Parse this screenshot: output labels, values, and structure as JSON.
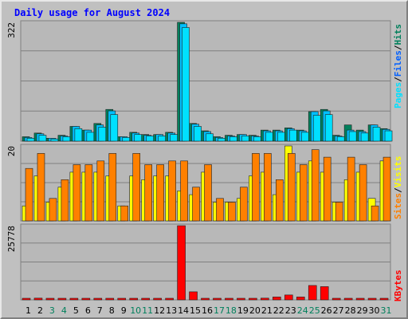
{
  "title": "Daily usage for August 2024",
  "colors": {
    "frame_bg": "#c0c0c0",
    "plot_bg": "#b8b8b8",
    "title": "#0000ff",
    "hits": "#00805c",
    "files": "#00c0ff",
    "pages": "#00e0ff",
    "visits": "#ffff00",
    "sites": "#ff8000",
    "kbytes": "#ff0000",
    "weekday_label": "#000000",
    "weekend_label": "#00805c"
  },
  "chart_data": [
    {
      "type": "bar",
      "panel": "hits-files-pages",
      "ymax_label": "322",
      "ylim": [
        0,
        322
      ],
      "legend": {
        "pages": "Pages",
        "files": "Files",
        "hits": "Hits",
        "sep": "/"
      },
      "series": [
        {
          "name": "Hits",
          "values": [
            12,
            22,
            8,
            16,
            40,
            30,
            48,
            86,
            12,
            24,
            18,
            18,
            24,
            322,
            48,
            28,
            12,
            16,
            18,
            16,
            30,
            30,
            36,
            30,
            80,
            86,
            16,
            44,
            30,
            44,
            34
          ]
        },
        {
          "name": "Files",
          "values": [
            10,
            20,
            8,
            14,
            40,
            30,
            44,
            82,
            12,
            22,
            16,
            18,
            22,
            318,
            46,
            26,
            10,
            14,
            18,
            14,
            28,
            28,
            34,
            28,
            80,
            82,
            14,
            30,
            26,
            44,
            32
          ]
        },
        {
          "name": "Pages",
          "values": [
            8,
            16,
            6,
            12,
            34,
            24,
            38,
            72,
            10,
            18,
            14,
            14,
            18,
            308,
            40,
            20,
            8,
            12,
            14,
            12,
            24,
            24,
            30,
            24,
            70,
            72,
            12,
            26,
            22,
            38,
            28
          ]
        }
      ]
    },
    {
      "type": "bar",
      "panel": "visits-sites",
      "ymax_label": "20",
      "ylim": [
        0,
        20
      ],
      "legend": {
        "sites": "Sites",
        "visits": "Visits",
        "sep": "/"
      },
      "series": [
        {
          "name": "Visits",
          "values": [
            4,
            12,
            5,
            9,
            13,
            13,
            13,
            12,
            4,
            12,
            11,
            12,
            12,
            8,
            7,
            13,
            5,
            5,
            6,
            12,
            13,
            7,
            20,
            13,
            16,
            13,
            5,
            11,
            13,
            6,
            16
          ]
        },
        {
          "name": "Sites",
          "values": [
            14,
            18,
            6,
            11,
            15,
            15,
            16,
            18,
            4,
            18,
            15,
            15,
            16,
            16,
            9,
            15,
            6,
            5,
            9,
            18,
            18,
            11,
            18,
            15,
            19,
            17,
            5,
            17,
            15,
            4,
            17
          ]
        }
      ]
    },
    {
      "type": "bar",
      "panel": "kbytes",
      "ymax_label": "25778",
      "ylim": [
        0,
        25778
      ],
      "legend": {
        "kbytes": "KBytes"
      },
      "series": [
        {
          "name": "KBytes",
          "values": [
            300,
            600,
            300,
            300,
            400,
            400,
            400,
            400,
            300,
            500,
            400,
            400,
            400,
            25778,
            2800,
            400,
            400,
            300,
            300,
            300,
            600,
            1000,
            1700,
            1000,
            5000,
            4600,
            300,
            500,
            400,
            400,
            400
          ]
        }
      ]
    }
  ],
  "days": [
    "1",
    "2",
    "3",
    "4",
    "5",
    "6",
    "7",
    "8",
    "9",
    "10",
    "11",
    "12",
    "13",
    "14",
    "15",
    "16",
    "17",
    "18",
    "19",
    "20",
    "21",
    "22",
    "23",
    "24",
    "25",
    "26",
    "27",
    "28",
    "29",
    "30",
    "31"
  ],
  "weekend_days": [
    3,
    4,
    10,
    11,
    17,
    18,
    24,
    25,
    31
  ]
}
